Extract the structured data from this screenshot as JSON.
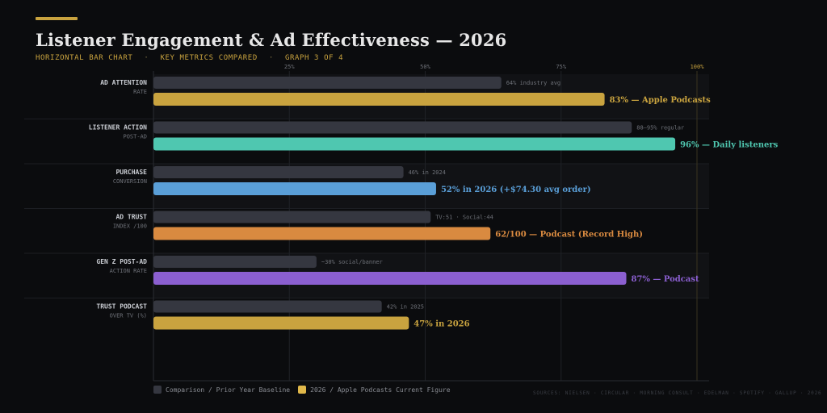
{
  "header": {
    "title": "Listener Engagement & Ad Effectiveness — 2026",
    "subtitle_parts": [
      "HORIZONTAL BAR CHART",
      "KEY METRICS COMPARED",
      "GRAPH 3 OF 4"
    ],
    "separator": "·"
  },
  "colors": {
    "background": "#0b0c0e",
    "accent": "#c9a33f",
    "comparison_bar": "#353740",
    "grid": "#1f2126"
  },
  "chart_data": {
    "type": "bar",
    "orientation": "horizontal",
    "xlim": [
      0,
      100
    ],
    "x_ticks": [
      {
        "value": 25,
        "label": "25%"
      },
      {
        "value": 50,
        "label": "50%"
      },
      {
        "value": 75,
        "label": "75%"
      },
      {
        "value": 100,
        "label": "100%"
      }
    ],
    "categories": [
      {
        "label": "AD ATTENTION",
        "sublabel": "RATE",
        "comparison": {
          "value": 64,
          "label": "64% industry avg"
        },
        "current": {
          "value": 83,
          "label": "83% — Apple Podcasts",
          "color": "#c9a33f"
        }
      },
      {
        "label": "LISTENER ACTION",
        "sublabel": "POST-AD",
        "comparison": {
          "value": 88,
          "label": "88–95% regular"
        },
        "current": {
          "value": 96,
          "label": "96% — Daily listeners",
          "color": "#4fc7b0"
        }
      },
      {
        "label": "PURCHASE",
        "sublabel": "CONVERSION",
        "comparison": {
          "value": 46,
          "label": "46% in 2024"
        },
        "current": {
          "value": 52,
          "label": "52% in 2026  (+$74.30 avg order)",
          "color": "#5a9fd8"
        }
      },
      {
        "label": "AD TRUST",
        "sublabel": "INDEX /100",
        "comparison": {
          "value": 51,
          "label": "TV:51 · Social:44"
        },
        "current": {
          "value": 62,
          "label": "62/100 — Podcast (Record High)",
          "color": "#d98a40"
        }
      },
      {
        "label": "GEN Z POST-AD",
        "sublabel": "ACTION RATE",
        "comparison": {
          "value": 30,
          "label": "~30% social/banner"
        },
        "current": {
          "value": 87,
          "label": "87% — Podcast",
          "color": "#8b5fd0"
        }
      },
      {
        "label": "TRUST PODCAST",
        "sublabel": "OVER TV (%)",
        "comparison": {
          "value": 42,
          "label": "42% in 2025"
        },
        "current": {
          "value": 47,
          "label": "47% in 2026",
          "color": "#c9a33f"
        }
      }
    ],
    "legend": [
      {
        "label": "Comparison / Prior Year Baseline",
        "color": "#353740"
      },
      {
        "label": "2026 / Apple Podcasts Current Figure",
        "color": "#e0b84a"
      }
    ]
  },
  "footer": {
    "sources": "SOURCES: NIELSEN · CIRCULAR · MORNING CONSULT · EDELMAN · SPOTIFY · GALLUP · 2026"
  }
}
